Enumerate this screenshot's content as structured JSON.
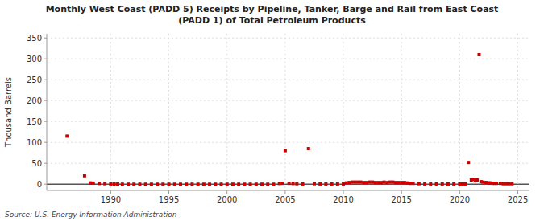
{
  "chart_data": {
    "type": "scatter",
    "title": "Monthly West Coast (PADD 5) Receipts by Pipeline, Tanker, Barge and Rail from East Coast\n(PADD 1) of Total Petroleum Products",
    "ylabel": "Thousand Barrels",
    "annotations": [
      "Source: U.S. Energy Information Administration"
    ],
    "color": "#cc0000",
    "marker": "square",
    "grid": true,
    "xlim": [
      1984.5,
      2026.0
    ],
    "ylim": [
      -15,
      360
    ],
    "xticks": [
      1990,
      1995,
      2000,
      2005,
      2010,
      2015,
      2020,
      2025
    ],
    "yticks": [
      0,
      50,
      100,
      150,
      200,
      250,
      300,
      350
    ],
    "x": [
      1986.25,
      1987.75,
      1988.25,
      1988.5,
      1989.0,
      1989.5,
      1990.0,
      1990.3,
      1990.6,
      1991.0,
      1991.5,
      1992.0,
      1992.5,
      1993.0,
      1993.5,
      1994.0,
      1994.5,
      1995.0,
      1995.5,
      1996.0,
      1996.5,
      1997.0,
      1997.5,
      1998.0,
      1998.5,
      1999.0,
      1999.5,
      2000.0,
      2000.5,
      2001.0,
      2001.5,
      2002.0,
      2002.5,
      2003.0,
      2003.5,
      2004.0,
      2004.5,
      2004.75,
      2005.0,
      2005.33,
      2005.67,
      2006.0,
      2006.5,
      2007.0,
      2007.5,
      2008.0,
      2008.5,
      2009.0,
      2009.5,
      2010.0,
      2010.25,
      2010.5,
      2010.75,
      2011.0,
      2011.25,
      2011.5,
      2011.75,
      2012.0,
      2012.25,
      2012.5,
      2012.75,
      2013.0,
      2013.25,
      2013.5,
      2013.75,
      2014.0,
      2014.25,
      2014.5,
      2014.75,
      2015.0,
      2015.25,
      2015.5,
      2015.75,
      2016.0,
      2016.5,
      2017.0,
      2017.5,
      2018.0,
      2018.5,
      2019.0,
      2019.5,
      2020.0,
      2020.25,
      2020.5,
      2020.75,
      2021.0,
      2021.17,
      2021.33,
      2021.5,
      2021.67,
      2021.83,
      2022.0,
      2022.17,
      2022.33,
      2022.5,
      2022.67,
      2022.83,
      2023.0,
      2023.17,
      2023.5,
      2023.75,
      2024.0,
      2024.25,
      2024.5
    ],
    "values": [
      115.0,
      20.0,
      3.0,
      2.5,
      1.5,
      1.0,
      0.5,
      0.3,
      0.3,
      0.0,
      0.0,
      0.0,
      0.0,
      0.0,
      0.0,
      0.0,
      0.0,
      0.0,
      0.0,
      0.0,
      0.0,
      0.0,
      0.0,
      0.0,
      0.0,
      0.0,
      0.0,
      0.0,
      0.0,
      0.0,
      0.0,
      0.0,
      0.0,
      0.0,
      0.0,
      0.0,
      1.5,
      2.0,
      80.0,
      2.0,
      1.5,
      1.0,
      0.5,
      85.0,
      1.0,
      0.5,
      0.5,
      0.5,
      0.5,
      0.5,
      3.0,
      4.0,
      5.0,
      5.0,
      5.0,
      5.0,
      4.0,
      4.0,
      5.0,
      5.0,
      4.0,
      4.0,
      4.0,
      5.0,
      4.0,
      5.0,
      5.0,
      4.0,
      4.0,
      4.0,
      4.0,
      3.0,
      2.0,
      2.0,
      1.0,
      0.5,
      0.5,
      0.5,
      0.5,
      0.5,
      0.5,
      0.5,
      0.5,
      0.5,
      52.0,
      10.0,
      12.0,
      8.0,
      10.0,
      310.0,
      6.0,
      5.0,
      4.0,
      4.0,
      3.0,
      3.0,
      2.0,
      2.0,
      2.0,
      2.0,
      1.0,
      1.0,
      1.0,
      1.0
    ]
  }
}
